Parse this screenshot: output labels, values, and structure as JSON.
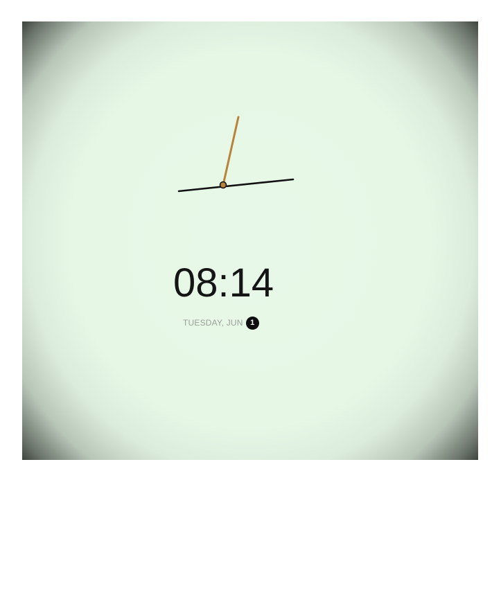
{
  "clock": {
    "time_display": "08:14",
    "date_label": "TUESDAY, JUN",
    "day_badge": "1",
    "hour": 8,
    "minute": 14,
    "hour_hand_color": "#111111",
    "minute_hand_color": "#b8833a",
    "hub_color": "#b8833a"
  },
  "colors": {
    "background_center": "#e8f8e8",
    "vignette_edge": "#000000",
    "time_text": "#151515",
    "date_text": "#9a9f9a",
    "badge_bg": "#0d0d0d"
  }
}
